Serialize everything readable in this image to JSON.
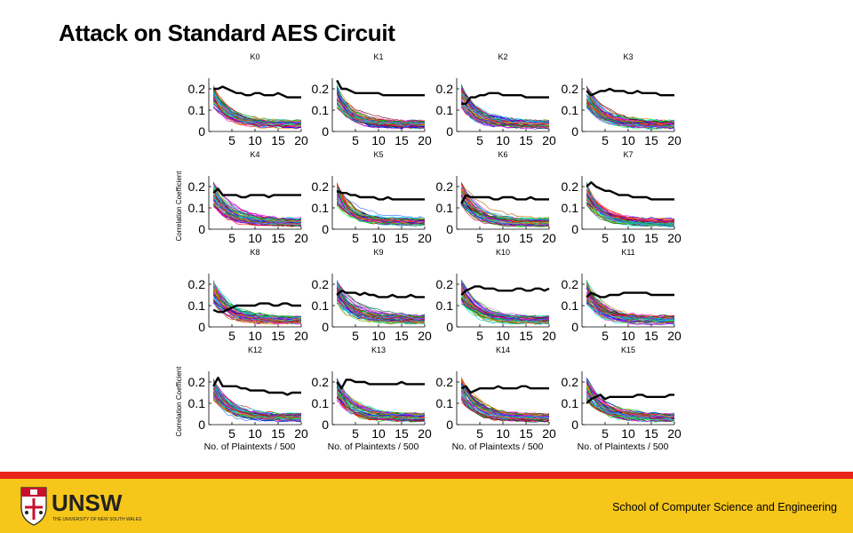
{
  "slide": {
    "title": "Attack on Standard AES Circuit"
  },
  "footer": {
    "school": "School of Computer Science and Engineering",
    "logo_text": "UNSW",
    "logo_tagline": "THE UNIVERSITY OF NEW SOUTH WALES",
    "bar_color": "#f6c61a",
    "stripe_color": "#e8231a"
  },
  "chart_data": {
    "type": "line",
    "ylabel": "Correlation Coefficient",
    "xlabel": "No. of Plaintexts / 500",
    "xlim": [
      0,
      20
    ],
    "ylim": [
      0,
      0.25
    ],
    "xticks": [
      5,
      10,
      15,
      20
    ],
    "yticks": [
      0,
      0.1,
      0.2
    ],
    "ytick_labels": [
      "0",
      "0.1",
      "0.2"
    ],
    "x": [
      1,
      2,
      3,
      4,
      5,
      6,
      7,
      8,
      9,
      10,
      11,
      12,
      13,
      14,
      15,
      16,
      17,
      18,
      19,
      20
    ],
    "correct_key_color": "#000000",
    "wrong_key_colors": [
      "#ff00ff",
      "#00aa00",
      "#0000ff",
      "#ff0000",
      "#00cccc",
      "#aa6600",
      "#7f00ff",
      "#00ff66",
      "#ff8800",
      "#006633",
      "#cc0066",
      "#3366ff",
      "#999900",
      "#660000",
      "#00ffff",
      "#ff66cc"
    ],
    "wrong_key_count": 60,
    "panels": [
      {
        "title": "K0",
        "correct": [
          0.2,
          0.2,
          0.21,
          0.2,
          0.19,
          0.18,
          0.18,
          0.17,
          0.17,
          0.18,
          0.18,
          0.17,
          0.17,
          0.17,
          0.18,
          0.17,
          0.16,
          0.16,
          0.16,
          0.16
        ]
      },
      {
        "title": "K1",
        "correct": [
          0.24,
          0.2,
          0.2,
          0.19,
          0.18,
          0.18,
          0.18,
          0.18,
          0.18,
          0.18,
          0.17,
          0.17,
          0.17,
          0.17,
          0.17,
          0.17,
          0.17,
          0.17,
          0.17,
          0.17
        ]
      },
      {
        "title": "K2",
        "correct": [
          0.13,
          0.13,
          0.16,
          0.16,
          0.17,
          0.17,
          0.18,
          0.18,
          0.18,
          0.17,
          0.17,
          0.17,
          0.17,
          0.17,
          0.16,
          0.16,
          0.16,
          0.16,
          0.16,
          0.16
        ]
      },
      {
        "title": "K3",
        "correct": [
          0.19,
          0.17,
          0.18,
          0.19,
          0.19,
          0.2,
          0.19,
          0.19,
          0.19,
          0.18,
          0.18,
          0.19,
          0.18,
          0.18,
          0.18,
          0.18,
          0.17,
          0.17,
          0.17,
          0.17
        ]
      },
      {
        "title": "K4",
        "correct": [
          0.17,
          0.19,
          0.16,
          0.16,
          0.16,
          0.16,
          0.15,
          0.15,
          0.16,
          0.16,
          0.16,
          0.16,
          0.15,
          0.16,
          0.16,
          0.16,
          0.16,
          0.16,
          0.16,
          0.16
        ]
      },
      {
        "title": "K5",
        "correct": [
          0.18,
          0.17,
          0.17,
          0.16,
          0.16,
          0.15,
          0.15,
          0.15,
          0.15,
          0.14,
          0.14,
          0.15,
          0.14,
          0.14,
          0.14,
          0.14,
          0.14,
          0.14,
          0.14,
          0.14
        ]
      },
      {
        "title": "K6",
        "correct": [
          0.12,
          0.16,
          0.15,
          0.15,
          0.15,
          0.15,
          0.15,
          0.14,
          0.14,
          0.15,
          0.15,
          0.15,
          0.14,
          0.14,
          0.14,
          0.15,
          0.14,
          0.14,
          0.14,
          0.14
        ]
      },
      {
        "title": "K7",
        "correct": [
          0.2,
          0.22,
          0.2,
          0.19,
          0.18,
          0.18,
          0.17,
          0.16,
          0.16,
          0.16,
          0.15,
          0.15,
          0.15,
          0.15,
          0.14,
          0.14,
          0.14,
          0.14,
          0.14,
          0.14
        ]
      },
      {
        "title": "K8",
        "correct": [
          0.08,
          0.07,
          0.07,
          0.08,
          0.09,
          0.1,
          0.1,
          0.1,
          0.1,
          0.1,
          0.11,
          0.11,
          0.11,
          0.1,
          0.1,
          0.11,
          0.11,
          0.1,
          0.1,
          0.1
        ]
      },
      {
        "title": "K9",
        "correct": [
          0.15,
          0.17,
          0.16,
          0.16,
          0.16,
          0.15,
          0.16,
          0.15,
          0.15,
          0.14,
          0.14,
          0.14,
          0.15,
          0.14,
          0.14,
          0.14,
          0.15,
          0.14,
          0.14,
          0.14
        ]
      },
      {
        "title": "K10",
        "correct": [
          0.15,
          0.17,
          0.18,
          0.19,
          0.19,
          0.18,
          0.18,
          0.18,
          0.17,
          0.17,
          0.17,
          0.17,
          0.18,
          0.18,
          0.17,
          0.17,
          0.18,
          0.18,
          0.17,
          0.18
        ]
      },
      {
        "title": "K11",
        "correct": [
          0.14,
          0.16,
          0.15,
          0.14,
          0.14,
          0.15,
          0.15,
          0.15,
          0.16,
          0.16,
          0.16,
          0.16,
          0.16,
          0.16,
          0.15,
          0.15,
          0.15,
          0.15,
          0.15,
          0.15
        ]
      },
      {
        "title": "K12",
        "correct": [
          0.18,
          0.22,
          0.18,
          0.18,
          0.18,
          0.18,
          0.17,
          0.17,
          0.16,
          0.16,
          0.16,
          0.16,
          0.15,
          0.15,
          0.15,
          0.15,
          0.14,
          0.15,
          0.15,
          0.15
        ]
      },
      {
        "title": "K13",
        "correct": [
          0.2,
          0.17,
          0.21,
          0.21,
          0.2,
          0.2,
          0.2,
          0.19,
          0.19,
          0.19,
          0.19,
          0.19,
          0.19,
          0.19,
          0.2,
          0.19,
          0.19,
          0.19,
          0.19,
          0.19
        ]
      },
      {
        "title": "K14",
        "correct": [
          0.17,
          0.18,
          0.15,
          0.16,
          0.17,
          0.17,
          0.17,
          0.17,
          0.18,
          0.17,
          0.17,
          0.17,
          0.17,
          0.18,
          0.18,
          0.17,
          0.17,
          0.17,
          0.17,
          0.17
        ]
      },
      {
        "title": "K15",
        "correct": [
          0.1,
          0.12,
          0.13,
          0.14,
          0.12,
          0.13,
          0.13,
          0.13,
          0.13,
          0.13,
          0.13,
          0.14,
          0.14,
          0.13,
          0.13,
          0.13,
          0.13,
          0.13,
          0.14,
          0.14
        ]
      }
    ]
  }
}
